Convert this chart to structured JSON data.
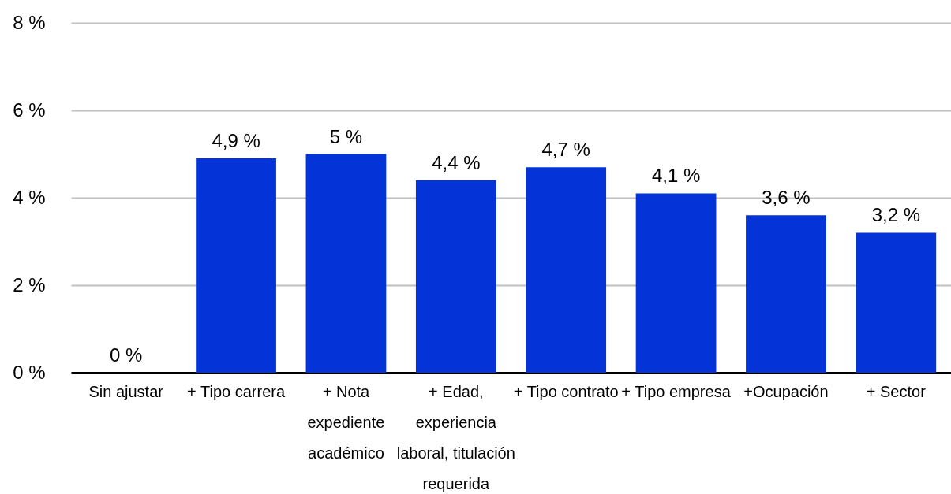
{
  "chart_data": {
    "type": "bar",
    "categories": [
      "Sin ajustar",
      "+ Tipo carrera",
      "+ Nota expediente académico",
      "+ Edad, experiencia laboral, titulación requerida",
      "+ Tipo contrato",
      "+ Tipo empresa",
      "+Ocupación",
      "+ Sector"
    ],
    "values": [
      0,
      4.9,
      5,
      4.4,
      4.7,
      4.1,
      3.6,
      3.2
    ],
    "value_labels": [
      "0 %",
      "4,9 %",
      "5 %",
      "4,4 %",
      "4,7 %",
      "4,1 %",
      "3,6 %",
      "3,2 %"
    ],
    "color": "#0434d8",
    "ylim": [
      0,
      8
    ],
    "yticks": [
      {
        "value": 0,
        "label": "0 %"
      },
      {
        "value": 2,
        "label": "2 %"
      },
      {
        "value": 4,
        "label": "4 %"
      },
      {
        "value": 6,
        "label": "6 %"
      },
      {
        "value": 8,
        "label": "8 %"
      }
    ],
    "grid": "y"
  }
}
